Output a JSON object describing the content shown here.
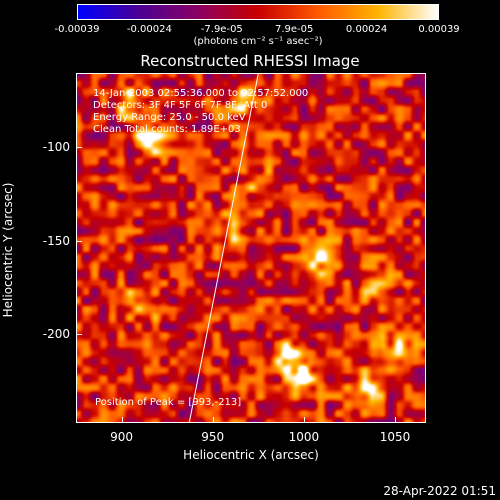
{
  "colorbar": {
    "ticks": [
      "-0.00039",
      "-0.00024",
      "-7.9e-05",
      "7.9e-05",
      "0.00024",
      "0.00039"
    ],
    "units": "(photons cm⁻² s⁻¹ asec⁻²)",
    "vmin": -0.00039,
    "vmax": 0.00039,
    "stops": [
      "#0000ff",
      "#4b0096",
      "#8c0064",
      "#c80000",
      "#ff5a00",
      "#ffb400",
      "#ffffff"
    ]
  },
  "chart_data": {
    "type": "heatmap",
    "title": "Reconstructed RHESSI Image",
    "xlabel": "Heliocentric X (arcsec)",
    "ylabel": "Heliocentric Y (arcsec)",
    "xlim": [
      875,
      1067
    ],
    "ylim": [
      -248,
      -60
    ],
    "x_ticks": [
      "900",
      "950",
      "1000",
      "1050"
    ],
    "y_ticks": [
      "-100",
      "-150",
      "-200"
    ],
    "x_tick_values": [
      900,
      950,
      1000,
      1050
    ],
    "y_tick_values": [
      -100,
      -150,
      -200
    ],
    "annotations": [
      "14-Jan-2003 02:55:36.000 to 02:57:52.000",
      "Detectors: 3F 4F 5F 6F 7F 8F, Att 0",
      "Energy Range: 25.0 - 50.0 keV",
      "Clean    Total counts: 1.89E+03"
    ],
    "peak_label": "Position of Peak = [993,-213]",
    "peak": [
      993,
      -213
    ],
    "limb_line": [
      [
        937,
        -248
      ],
      [
        975,
        -60
      ]
    ],
    "hotspots": [
      [
        916,
        -95,
        0.00036
      ],
      [
        905,
        -75,
        0.0003
      ],
      [
        965,
        -75,
        0.00028
      ],
      [
        1010,
        -160,
        0.00032
      ],
      [
        993,
        -213,
        0.00039
      ],
      [
        1035,
        -230,
        0.00034
      ],
      [
        1050,
        -210,
        0.0003
      ],
      [
        1000,
        -225,
        0.00031
      ],
      [
        910,
        -185,
        0.00026
      ],
      [
        960,
        -145,
        0.00022
      ],
      [
        975,
        -120,
        0.00018
      ],
      [
        1040,
        -175,
        0.00022
      ]
    ]
  },
  "timestamp": "28-Apr-2022 01:51"
}
